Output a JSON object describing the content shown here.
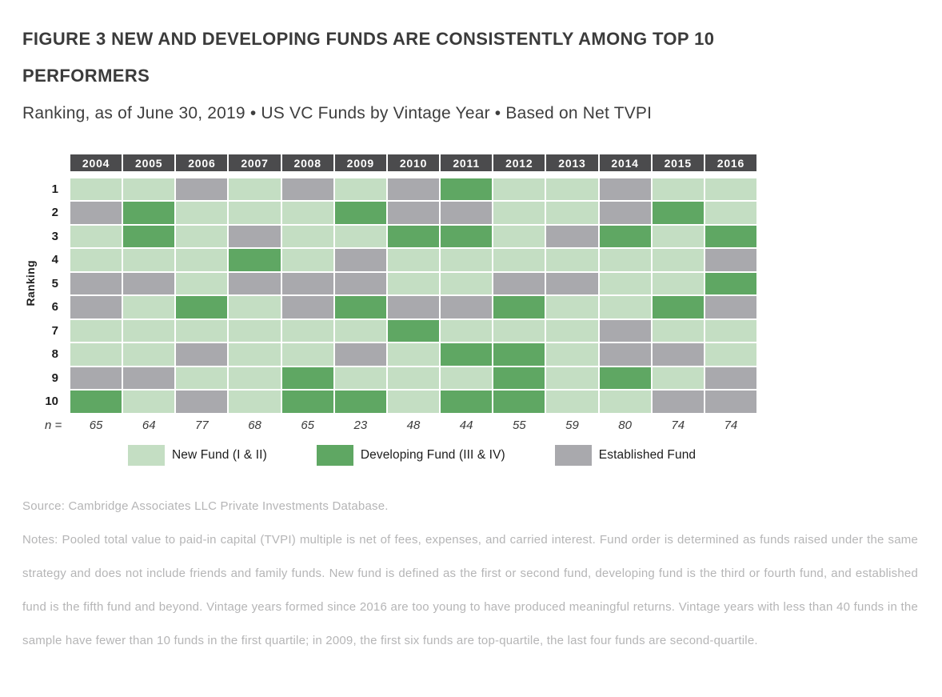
{
  "title": "FIGURE 3 NEW AND DEVELOPING FUNDS ARE CONSISTENTLY AMONG TOP 10 PERFORMERS",
  "subtitle": "Ranking, as of June 30, 2019 • US VC Funds by Vintage Year • Based on Net TVPI",
  "chart_data": {
    "type": "heatmap",
    "title": "FIGURE 3 NEW AND DEVELOPING FUNDS ARE CONSISTENTLY AMONG TOP 10 PERFORMERS",
    "x_categories": [
      "2004",
      "2005",
      "2006",
      "2007",
      "2008",
      "2009",
      "2010",
      "2011",
      "2012",
      "2013",
      "2014",
      "2015",
      "2016"
    ],
    "y_label": "Ranking",
    "y_categories": [
      "1",
      "2",
      "3",
      "4",
      "5",
      "6",
      "7",
      "8",
      "9",
      "10"
    ],
    "n_label": "n =",
    "n_values": [
      "65",
      "64",
      "77",
      "68",
      "65",
      "23",
      "48",
      "44",
      "55",
      "59",
      "80",
      "74",
      "74"
    ],
    "legend": [
      {
        "key": "N",
        "label": "New Fund (I & II)",
        "color": "#c4dec3"
      },
      {
        "key": "D",
        "label": "Developing Fund (III & IV)",
        "color": "#5fa763"
      },
      {
        "key": "E",
        "label": "Established Fund",
        "color": "#a9a9ad"
      }
    ],
    "legend_position": "bottom",
    "cells_legend_keys": "rows are rankings 1-10 top to bottom; columns are vintage years 2004-2016; N=New Fund, D=Developing Fund, E=Established Fund",
    "cells": [
      [
        "N",
        "N",
        "E",
        "N",
        "E",
        "N",
        "E",
        "D",
        "N",
        "N",
        "E",
        "N",
        "N"
      ],
      [
        "E",
        "D",
        "N",
        "N",
        "N",
        "D",
        "E",
        "E",
        "N",
        "N",
        "E",
        "D",
        "N"
      ],
      [
        "N",
        "D",
        "N",
        "E",
        "N",
        "N",
        "D",
        "D",
        "N",
        "E",
        "D",
        "N",
        "D"
      ],
      [
        "N",
        "N",
        "N",
        "D",
        "N",
        "E",
        "N",
        "N",
        "N",
        "N",
        "N",
        "N",
        "E"
      ],
      [
        "E",
        "E",
        "N",
        "E",
        "E",
        "E",
        "N",
        "N",
        "E",
        "E",
        "N",
        "N",
        "D"
      ],
      [
        "E",
        "N",
        "D",
        "N",
        "E",
        "D",
        "E",
        "E",
        "D",
        "N",
        "N",
        "D",
        "E"
      ],
      [
        "N",
        "N",
        "N",
        "N",
        "N",
        "N",
        "D",
        "N",
        "N",
        "N",
        "E",
        "N",
        "N"
      ],
      [
        "N",
        "N",
        "E",
        "N",
        "N",
        "E",
        "N",
        "D",
        "D",
        "N",
        "E",
        "E",
        "N"
      ],
      [
        "E",
        "E",
        "N",
        "N",
        "D",
        "N",
        "N",
        "N",
        "D",
        "N",
        "D",
        "N",
        "E"
      ],
      [
        "D",
        "N",
        "E",
        "N",
        "D",
        "D",
        "N",
        "D",
        "D",
        "N",
        "N",
        "E",
        "E"
      ]
    ],
    "header_bg": "#4b4b4d"
  },
  "source": "Source: Cambridge Associates LLC Private Investments Database.",
  "notes": "Notes: Pooled total value to paid-in capital (TVPI) multiple is net of fees, expenses, and carried interest. Fund order is determined as funds raised under the same strategy and does not include friends and family funds. New fund is defined as the first or second fund, developing fund is the third or fourth fund, and established fund is the fifth fund and beyond. Vintage years formed since 2016 are too young to have produced meaningful returns. Vintage years with less than 40 funds in the sample have fewer than 10 funds in the first quartile; in 2009, the first six funds are top-quartile, the last four funds are second-quartile."
}
